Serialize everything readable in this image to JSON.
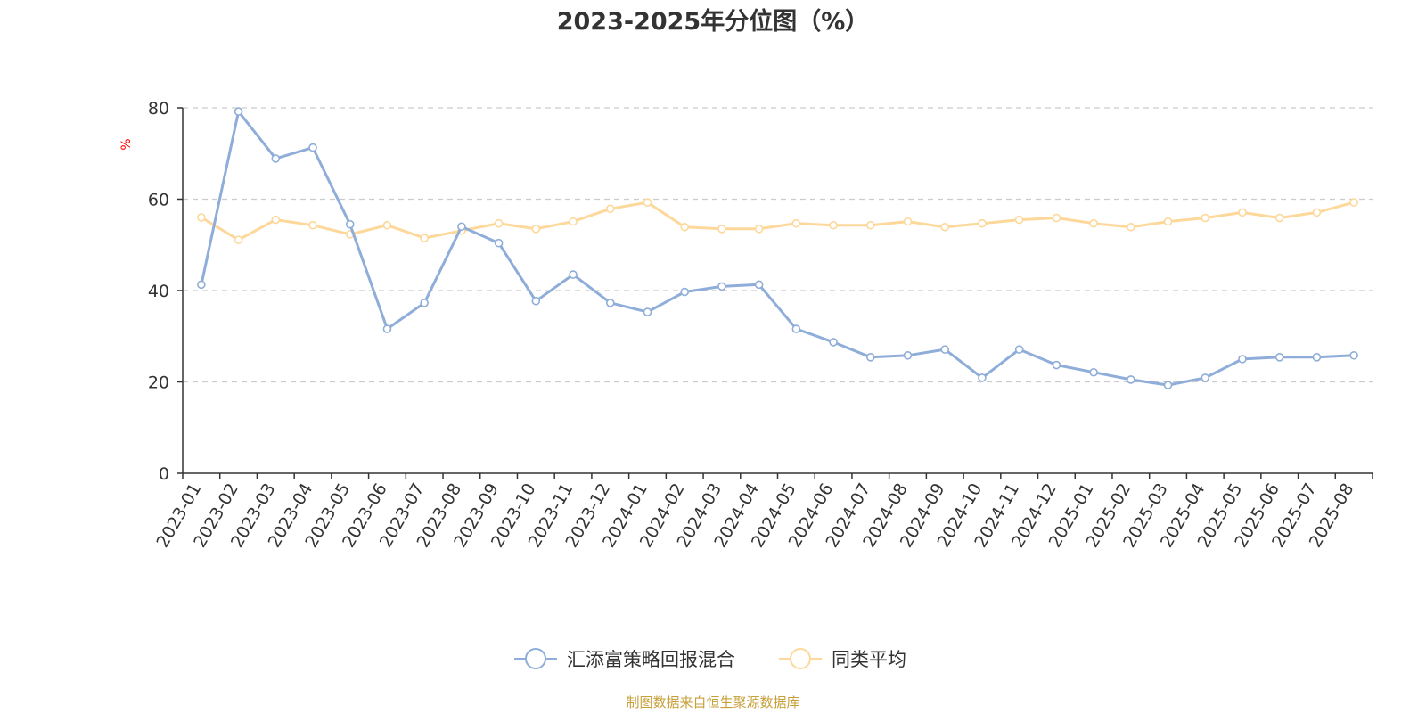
{
  "page": {
    "source_text": "制图数据来自恒生聚源数据库"
  },
  "colors": {
    "series_1": "#8fadd9",
    "series_2": "#fdd89a",
    "axis": "#333333",
    "grid": "#cccccc",
    "ylabel": "#ff0000",
    "source": "#c8a03a"
  },
  "chart_data": {
    "type": "line",
    "title": "2023-2025年分位图（%）",
    "xlabel": "",
    "ylabel": "%",
    "ylim": [
      0,
      80
    ],
    "yticks": [
      0,
      20,
      40,
      60,
      80
    ],
    "grid": true,
    "legend_position": "bottom-center",
    "x": [
      "2023-01",
      "2023-02",
      "2023-03",
      "2023-04",
      "2023-05",
      "2023-06",
      "2023-07",
      "2023-08",
      "2023-09",
      "2023-10",
      "2023-11",
      "2023-12",
      "2024-01",
      "2024-02",
      "2024-03",
      "2024-04",
      "2024-05",
      "2024-06",
      "2024-07",
      "2024-08",
      "2024-09",
      "2024-10",
      "2024-11",
      "2024-12",
      "2025-01",
      "2025-02",
      "2025-03",
      "2025-04",
      "2025-05",
      "2025-06",
      "2025-07",
      "2025-08"
    ],
    "series": [
      {
        "name": "汇添富策略回报混合",
        "color": "#8fadd9",
        "values": [
          41.3,
          79.2,
          68.9,
          71.3,
          54.5,
          31.6,
          37.3,
          54.0,
          50.4,
          37.7,
          43.5,
          37.3,
          35.3,
          39.7,
          40.9,
          41.3,
          31.6,
          28.7,
          25.4,
          25.8,
          27.1,
          20.9,
          27.1,
          23.7,
          22.1,
          20.5,
          19.3,
          20.9,
          25.0,
          25.4,
          25.4,
          25.8
        ]
      },
      {
        "name": "同类平均",
        "color": "#fdd89a",
        "values": [
          56.0,
          51.1,
          55.5,
          54.3,
          52.3,
          54.3,
          51.5,
          53.1,
          54.7,
          53.5,
          55.1,
          57.9,
          59.3,
          53.9,
          53.5,
          53.5,
          54.7,
          54.3,
          54.3,
          55.1,
          53.9,
          54.7,
          55.5,
          55.9,
          54.7,
          53.9,
          55.1,
          55.9,
          57.1,
          55.9,
          57.1,
          59.3
        ]
      }
    ]
  }
}
